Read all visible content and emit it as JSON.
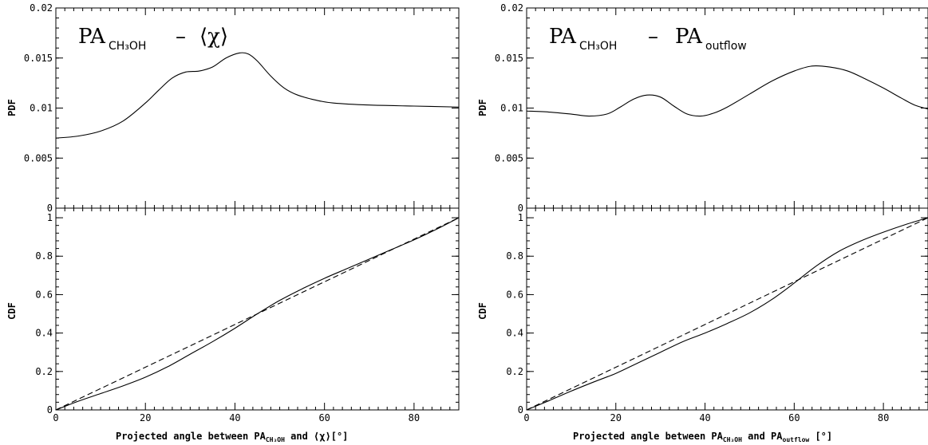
{
  "chart_data": [
    {
      "type": "line",
      "panel": "top-left",
      "title": {
        "base": "PA",
        "sub": "CH₃OH",
        "sep": "–",
        "rhs": "⟨χ⟩",
        "rhs_sub": ""
      },
      "ylabel": "PDF",
      "xlim": [
        0,
        90
      ],
      "ylim": [
        0,
        0.02
      ],
      "yticks": [
        "0",
        "0.005",
        "0.01",
        "0.015",
        "0.02"
      ],
      "series": [
        {
          "style": "solid",
          "x": [
            0,
            5,
            10,
            15,
            20,
            23,
            26,
            29,
            32,
            35,
            38,
            41,
            43,
            45,
            48,
            51,
            54,
            58,
            62,
            70,
            80,
            90
          ],
          "y": [
            0.007,
            0.0072,
            0.0077,
            0.0087,
            0.0105,
            0.0118,
            0.013,
            0.0136,
            0.0137,
            0.0141,
            0.015,
            0.0155,
            0.0154,
            0.0147,
            0.0132,
            0.012,
            0.0113,
            0.0108,
            0.0105,
            0.0103,
            0.0102,
            0.0101
          ]
        }
      ]
    },
    {
      "type": "line",
      "panel": "bottom-left",
      "ylabel": "CDF",
      "xlabel": {
        "text_a": "Projected angle between PA",
        "sub_a": "CH₃OH",
        "text_b": " and ⟨χ⟩[°]"
      },
      "xlim": [
        0,
        90
      ],
      "ylim": [
        0,
        1.05
      ],
      "xticks": [
        "0",
        "20",
        "40",
        "60",
        "80"
      ],
      "yticks": [
        "0",
        "0.2",
        "0.4",
        "0.6",
        "0.8",
        "1"
      ],
      "series": [
        {
          "style": "solid",
          "x": [
            0,
            5,
            10,
            15,
            20,
            25,
            30,
            35,
            40,
            45,
            50,
            55,
            60,
            65,
            70,
            75,
            80,
            85,
            90
          ],
          "y": [
            0,
            0.045,
            0.085,
            0.125,
            0.17,
            0.225,
            0.29,
            0.355,
            0.425,
            0.5,
            0.57,
            0.63,
            0.685,
            0.735,
            0.785,
            0.835,
            0.885,
            0.94,
            1.0
          ]
        },
        {
          "style": "dashed",
          "x": [
            0,
            90
          ],
          "y": [
            0,
            1
          ]
        }
      ]
    },
    {
      "type": "line",
      "panel": "top-right",
      "title": {
        "base": "PA",
        "sub": "CH₃OH",
        "sep": "–",
        "rhs": "PA",
        "rhs_sub": "outflow"
      },
      "ylabel": "PDF",
      "xlim": [
        0,
        90
      ],
      "ylim": [
        0,
        0.02
      ],
      "yticks": [
        "0",
        "0.005",
        "0.01",
        "0.015",
        "0.02"
      ],
      "series": [
        {
          "style": "solid",
          "x": [
            0,
            5,
            10,
            14,
            18,
            21,
            24,
            27,
            30,
            33,
            36,
            39,
            42,
            45,
            50,
            55,
            60,
            64,
            68,
            72,
            76,
            80,
            84,
            87,
            90
          ],
          "y": [
            0.0097,
            0.0096,
            0.0094,
            0.0092,
            0.0094,
            0.0101,
            0.0109,
            0.0113,
            0.0111,
            0.0102,
            0.0094,
            0.0092,
            0.0095,
            0.0101,
            0.0114,
            0.0127,
            0.0137,
            0.0142,
            0.0141,
            0.0137,
            0.0129,
            0.012,
            0.011,
            0.0103,
            0.0099
          ]
        }
      ]
    },
    {
      "type": "line",
      "panel": "bottom-right",
      "ylabel": "CDF",
      "xlabel": {
        "text_a": "Projected angle between PA",
        "sub_a": "CH₃OH",
        "text_b": " and PA",
        "sub_b": "outflow",
        "text_c": " [°]"
      },
      "xlim": [
        0,
        90
      ],
      "ylim": [
        0,
        1.05
      ],
      "xticks": [
        "0",
        "20",
        "40",
        "60",
        "80"
      ],
      "yticks": [
        "0",
        "0.2",
        "0.4",
        "0.6",
        "0.8",
        "1"
      ],
      "series": [
        {
          "style": "solid",
          "x": [
            0,
            5,
            10,
            15,
            20,
            25,
            30,
            35,
            40,
            45,
            50,
            55,
            60,
            65,
            70,
            75,
            80,
            85,
            90
          ],
          "y": [
            0,
            0.048,
            0.098,
            0.145,
            0.19,
            0.245,
            0.3,
            0.355,
            0.4,
            0.45,
            0.505,
            0.575,
            0.66,
            0.75,
            0.825,
            0.88,
            0.925,
            0.965,
            1.0
          ]
        },
        {
          "style": "dashed",
          "x": [
            0,
            90
          ],
          "y": [
            0,
            1
          ]
        }
      ]
    }
  ]
}
